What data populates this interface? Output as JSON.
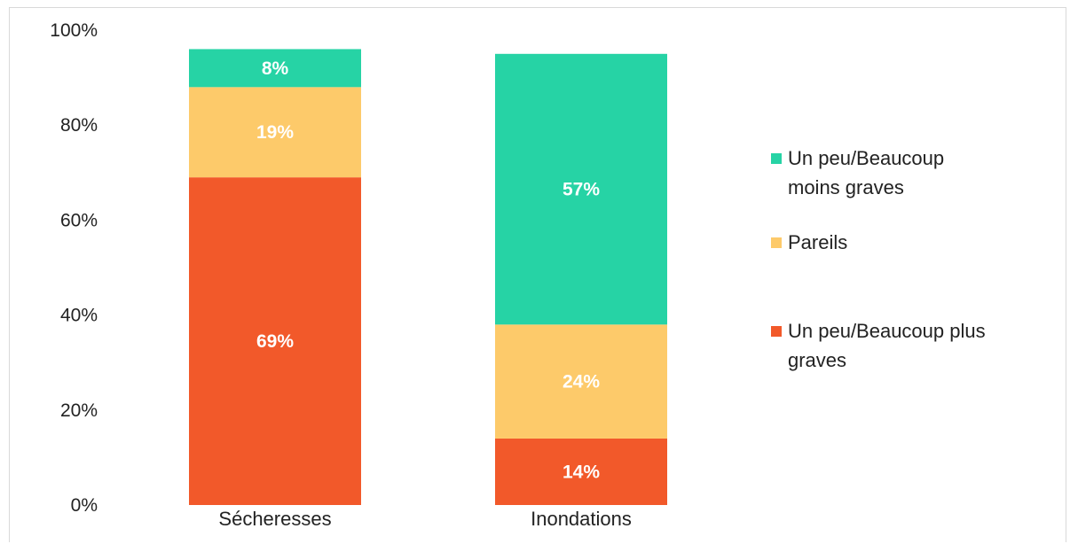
{
  "chart_data": {
    "type": "bar",
    "stacked": true,
    "categories": [
      "Sécheresses",
      "Inondations"
    ],
    "series": [
      {
        "name": "Un peu/Beaucoup plus graves",
        "values": [
          69,
          14
        ],
        "labels": [
          "69%",
          "14%"
        ],
        "color": "#f2592a"
      },
      {
        "name": "Pareils",
        "values": [
          19,
          24
        ],
        "labels": [
          "19%",
          "24%"
        ],
        "color": "#fdca6a"
      },
      {
        "name": "Un peu/Beaucoup moins graves",
        "values": [
          8,
          57
        ],
        "labels": [
          "8%",
          "57%"
        ],
        "color": "#26d3a5"
      }
    ],
    "y_ticks": [
      {
        "value": 0,
        "label": "0%"
      },
      {
        "value": 20,
        "label": "20%"
      },
      {
        "value": 40,
        "label": "40%"
      },
      {
        "value": 60,
        "label": "60%"
      },
      {
        "value": 80,
        "label": "80%"
      },
      {
        "value": 100,
        "label": "100%"
      }
    ],
    "ylim": [
      0,
      100
    ],
    "grid": false,
    "legend": {
      "placement": "right",
      "entries": [
        {
          "lines": [
            "Un peu/Beaucoup",
            "moins graves"
          ],
          "color": "#26d3a5"
        },
        {
          "lines": [
            "Pareils"
          ],
          "color": "#fdca6a"
        },
        {
          "lines": [
            "Un peu/Beaucoup plus",
            "graves"
          ],
          "color": "#f2592a"
        }
      ]
    }
  }
}
